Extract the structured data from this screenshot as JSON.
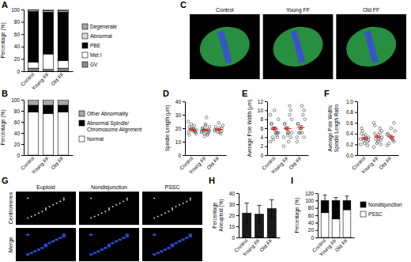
{
  "chart_data": [
    {
      "panel": "A",
      "type": "bar",
      "stacked": true,
      "y_label": "Percentage (%)",
      "categories": [
        "Control",
        "Young FF",
        "Old FF"
      ],
      "ylim": [
        0,
        100
      ],
      "yticks": [
        0,
        20,
        40,
        60,
        80,
        100
      ],
      "series": [
        {
          "name": "GV",
          "color": "#8c8c8c",
          "values": [
            5,
            3,
            5
          ]
        },
        {
          "name": "Met I",
          "color": "#ffffff",
          "values": [
            10,
            25,
            12
          ]
        },
        {
          "name": "PBE",
          "color": "#000000",
          "values": [
            82,
            68,
            79
          ]
        },
        {
          "name": "Abnormal",
          "color": "#d9d9d9",
          "values": [
            2,
            2,
            2
          ]
        },
        {
          "name": "Degenerate",
          "color": "#a6a6a6",
          "values": [
            1,
            2,
            2
          ]
        }
      ]
    },
    {
      "panel": "B",
      "type": "bar",
      "stacked": true,
      "y_label": "Percentage (%)",
      "categories": [
        "Control",
        "Young FF",
        "Old FF"
      ],
      "ylim": [
        0,
        100
      ],
      "yticks": [
        0,
        20,
        40,
        60,
        80,
        100
      ],
      "series": [
        {
          "name": "Normal",
          "color": "#ffffff",
          "values": [
            78,
            75,
            78
          ]
        },
        {
          "name": "Abnormal Spindle/ Chromosome Alignment",
          "color": "#000000",
          "values": [
            12,
            15,
            12
          ]
        },
        {
          "name": "Other Abnormality",
          "color": "#a6a6a6",
          "values": [
            10,
            10,
            10
          ]
        }
      ]
    },
    {
      "panel": "C",
      "type": "image",
      "categories": [
        "Control",
        "Young FF",
        "Old FF"
      ]
    },
    {
      "panel": "D",
      "type": "scatter",
      "y_label": "Spindle Length (μm)",
      "color": "#404040",
      "categories": [
        "Control",
        "Young FF",
        "Old FF"
      ],
      "ylim": [
        0,
        40
      ],
      "yticks": [
        0,
        10,
        20,
        30,
        40
      ],
      "points": [
        [
          17,
          18,
          19,
          20,
          21,
          16,
          22,
          18,
          19,
          25,
          17,
          20,
          23,
          15,
          19,
          18
        ],
        [
          18,
          17,
          19,
          16,
          20,
          21,
          15,
          22,
          18,
          17,
          19,
          28,
          14,
          20,
          18,
          16,
          23,
          19
        ],
        [
          19,
          18,
          20,
          17,
          21,
          22,
          16,
          24,
          19,
          18,
          20,
          17
        ]
      ],
      "means": [
        19,
        18.5,
        19
      ],
      "errors": [
        0.6,
        0.6,
        0.7
      ]
    },
    {
      "panel": "E",
      "type": "scatter",
      "y_label": "Average Pole Width (μm)",
      "color": "#404040",
      "categories": [
        "Control",
        "Young FF",
        "Old FF"
      ],
      "ylim": [
        0,
        12
      ],
      "yticks": [
        0,
        2,
        4,
        6,
        8,
        10,
        12
      ],
      "points": [
        [
          3,
          4,
          5,
          6,
          7,
          8,
          5,
          6,
          4,
          9,
          5,
          6,
          3.5,
          7,
          5,
          4.5,
          10,
          6
        ],
        [
          2,
          4,
          5,
          6,
          7,
          8,
          9,
          5,
          6,
          4,
          10,
          3,
          6,
          7,
          5,
          11,
          4.5
        ],
        [
          3,
          4,
          5,
          6,
          7,
          8,
          9,
          6,
          5,
          4,
          10,
          11,
          5,
          7
        ]
      ],
      "means": [
        5.8,
        5.9,
        6.2
      ],
      "errors": [
        0.3,
        0.4,
        0.4
      ]
    },
    {
      "panel": "F",
      "type": "scatter",
      "y_label": "Average Pole Width: Spindle Length Ratio",
      "color": "#404040",
      "categories": [
        "Control",
        "Young FF",
        "Old FF"
      ],
      "ylim": [
        0,
        1
      ],
      "yticks": [
        {
          "value": 0,
          "label": "0.0"
        },
        0.2,
        0.4,
        0.6,
        0.8,
        {
          "value": 1,
          "label": "1.0"
        }
      ],
      "points": [
        [
          0.2,
          0.25,
          0.3,
          0.35,
          0.4,
          0.28,
          0.32,
          0.22,
          0.45,
          0.3,
          0.18,
          0.38,
          0.27,
          0.5,
          0.33
        ],
        [
          0.15,
          0.2,
          0.3,
          0.35,
          0.4,
          0.45,
          0.5,
          0.25,
          0.3,
          0.6,
          0.28,
          0.38,
          0.22,
          0.55,
          0.33,
          0.42
        ],
        [
          0.18,
          0.25,
          0.3,
          0.35,
          0.4,
          0.45,
          0.28,
          0.5,
          0.22,
          0.38,
          0.6,
          0.32
        ]
      ],
      "means": [
        0.31,
        0.34,
        0.34
      ],
      "errors": [
        0.02,
        0.02,
        0.03
      ]
    },
    {
      "panel": "G",
      "type": "image",
      "categories": [
        "Euploid",
        "Nondisjunction",
        "PSSC"
      ],
      "row_labels": [
        "Centromeres",
        "Merge"
      ]
    },
    {
      "panel": "H",
      "type": "bar",
      "y_label": "Percentage Aneuploid (%)",
      "color": "#1a1a1a",
      "categories": [
        "Control",
        "Young FF",
        "Old FF"
      ],
      "values": [
        22,
        21,
        26
      ],
      "errors": [
        9,
        8,
        8
      ],
      "ylim": [
        0,
        40
      ],
      "yticks": [
        0,
        10,
        20,
        30,
        40
      ]
    },
    {
      "panel": "I",
      "type": "bar",
      "stacked": true,
      "y_label": "Percentage (%)",
      "categories": [
        "Control",
        "Young FF",
        "Old FF"
      ],
      "ylim": [
        0,
        120
      ],
      "yticks": [
        0,
        20,
        40,
        60,
        80,
        100,
        120
      ],
      "series": [
        {
          "name": "PSSC",
          "color": "#ffffff",
          "values": [
            67,
            50,
            75
          ]
        },
        {
          "name": "Nondisjunction",
          "color": "#000000",
          "values": [
            33,
            50,
            25
          ],
          "errors": [
            15,
            8,
            12
          ]
        }
      ]
    }
  ]
}
